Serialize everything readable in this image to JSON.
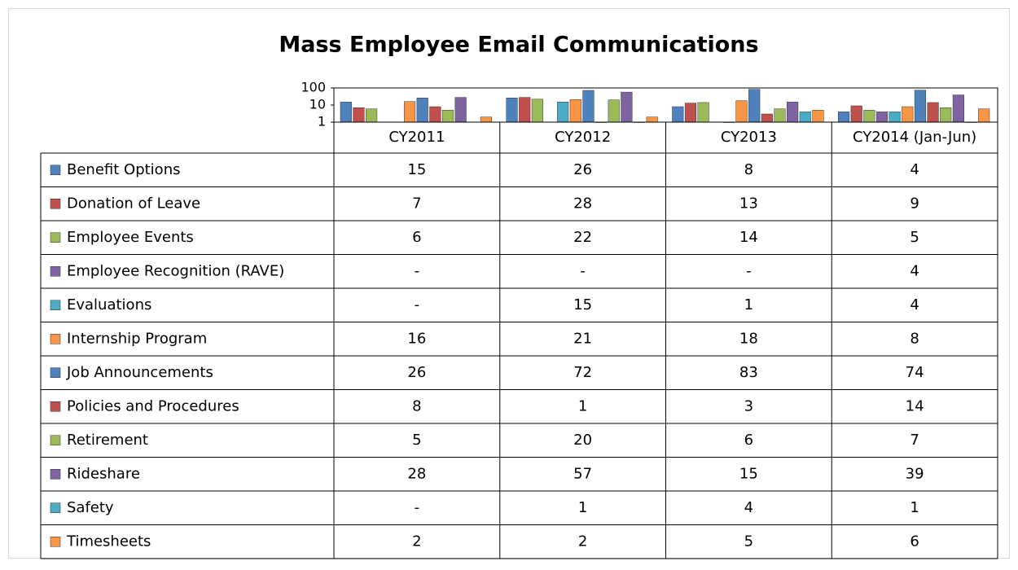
{
  "chart_data": {
    "type": "bar",
    "title": "Mass Employee Email Communications",
    "categories": [
      "CY2011",
      "CY2012",
      "CY2013",
      "CY2014 (Jan-Jun)"
    ],
    "log_scale": true,
    "ylim": [
      1,
      100
    ],
    "yticks": [
      1,
      10,
      100
    ],
    "series": [
      {
        "name": "Benefit Options",
        "color": "#4f81bd",
        "values": [
          15,
          26,
          8,
          4
        ]
      },
      {
        "name": "Donation of Leave",
        "color": "#c0504d",
        "values": [
          7,
          28,
          13,
          9
        ]
      },
      {
        "name": "Employee Events",
        "color": "#9bbb59",
        "values": [
          6,
          22,
          14,
          5
        ]
      },
      {
        "name": "Employee Recognition (RAVE)",
        "color": "#8064a2",
        "values": [
          null,
          null,
          null,
          4
        ],
        "value_labels": [
          "-",
          "-",
          "-",
          null
        ]
      },
      {
        "name": "Evaluations",
        "color": "#4bacc6",
        "values": [
          null,
          15,
          1,
          4
        ],
        "value_labels": [
          "-",
          null,
          null,
          null
        ]
      },
      {
        "name": "Internship Program",
        "color": "#f79646",
        "values": [
          16,
          21,
          18,
          8
        ]
      },
      {
        "name": "Job Announcements",
        "color": "#4f81bd",
        "values": [
          26,
          72,
          83,
          74
        ]
      },
      {
        "name": "Policies and Procedures",
        "color": "#c0504d",
        "values": [
          8,
          1,
          3,
          14
        ]
      },
      {
        "name": "Retirement",
        "color": "#9bbb59",
        "values": [
          5,
          20,
          6,
          7
        ]
      },
      {
        "name": "Rideshare",
        "color": "#8064a2",
        "values": [
          28,
          57,
          15,
          39
        ]
      },
      {
        "name": "Safety",
        "color": "#4bacc6",
        "values": [
          null,
          1,
          4,
          1
        ],
        "value_labels": [
          "-",
          null,
          null,
          null
        ]
      },
      {
        "name": "Timesheets",
        "color": "#f79646",
        "values": [
          2,
          2,
          5,
          6
        ]
      }
    ]
  }
}
